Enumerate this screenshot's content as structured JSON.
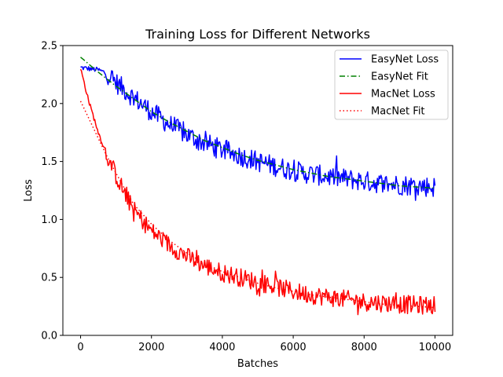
{
  "chart_data": {
    "type": "line",
    "title": "Training Loss for Different Networks",
    "xlabel": "Batches",
    "ylabel": "Loss",
    "xlim": [
      -500,
      10500
    ],
    "ylim": [
      0.0,
      2.5
    ],
    "xticks": [
      0,
      2000,
      4000,
      6000,
      8000,
      10000
    ],
    "xtick_labels": [
      "0",
      "2000",
      "4000",
      "6000",
      "8000",
      "10000"
    ],
    "yticks": [
      0.0,
      0.5,
      1.0,
      1.5,
      2.0,
      2.5
    ],
    "ytick_labels": [
      "0.0",
      "0.5",
      "1.0",
      "1.5",
      "2.0",
      "2.5"
    ],
    "legend_position": "top-right",
    "series": [
      {
        "name": "EasyNet Loss",
        "color": "#0000ff",
        "style": "solid",
        "kind": "noisy",
        "x": [
          0,
          250,
          500,
          750,
          1000,
          1500,
          2000,
          2500,
          3000,
          3500,
          4000,
          4500,
          5000,
          5500,
          6000,
          6500,
          7000,
          7500,
          8000,
          8500,
          9000,
          9500,
          10000
        ],
        "y": [
          2.31,
          2.3,
          2.29,
          2.26,
          2.18,
          2.05,
          1.93,
          1.82,
          1.73,
          1.66,
          1.6,
          1.55,
          1.5,
          1.46,
          1.42,
          1.39,
          1.37,
          1.35,
          1.33,
          1.31,
          1.3,
          1.29,
          1.28
        ],
        "noise": 0.09,
        "points": 400
      },
      {
        "name": "EasyNet Fit",
        "color": "#008000",
        "style": "dashdot",
        "kind": "smooth",
        "x": [
          0,
          500,
          1000,
          1500,
          2000,
          2500,
          3000,
          3500,
          4000,
          4500,
          5000,
          5500,
          6000,
          6500,
          7000,
          7500,
          8000,
          8500,
          9000,
          9500,
          10000
        ],
        "y": [
          2.4,
          2.27,
          2.15,
          2.04,
          1.93,
          1.84,
          1.76,
          1.68,
          1.62,
          1.56,
          1.51,
          1.47,
          1.43,
          1.4,
          1.37,
          1.35,
          1.33,
          1.31,
          1.29,
          1.28,
          1.27
        ]
      },
      {
        "name": "MacNet Loss",
        "color": "#ff0000",
        "style": "solid",
        "kind": "noisy",
        "x": [
          0,
          250,
          500,
          750,
          1000,
          1250,
          1500,
          2000,
          2500,
          3000,
          3500,
          4000,
          4500,
          5000,
          5500,
          6000,
          6500,
          7000,
          7500,
          8000,
          8500,
          9000,
          9500,
          10000
        ],
        "y": [
          2.3,
          2.0,
          1.75,
          1.55,
          1.38,
          1.22,
          1.08,
          0.9,
          0.78,
          0.68,
          0.6,
          0.54,
          0.5,
          0.46,
          0.42,
          0.38,
          0.35,
          0.33,
          0.31,
          0.29,
          0.28,
          0.27,
          0.26,
          0.26
        ],
        "noise": 0.08,
        "points": 400
      },
      {
        "name": "MacNet Fit",
        "color": "#ff0000",
        "style": "dotted",
        "kind": "smooth",
        "x": [
          0,
          250,
          500,
          750,
          1000,
          1250,
          1500,
          2000,
          2500,
          3000,
          3500,
          4000,
          4500,
          5000,
          5500,
          6000,
          6500,
          7000,
          7500,
          8000,
          8500,
          9000,
          9500,
          10000
        ],
        "y": [
          2.02,
          1.86,
          1.7,
          1.54,
          1.4,
          1.26,
          1.13,
          0.96,
          0.82,
          0.71,
          0.62,
          0.55,
          0.5,
          0.45,
          0.41,
          0.38,
          0.35,
          0.33,
          0.31,
          0.29,
          0.27,
          0.26,
          0.25,
          0.24
        ]
      }
    ]
  }
}
